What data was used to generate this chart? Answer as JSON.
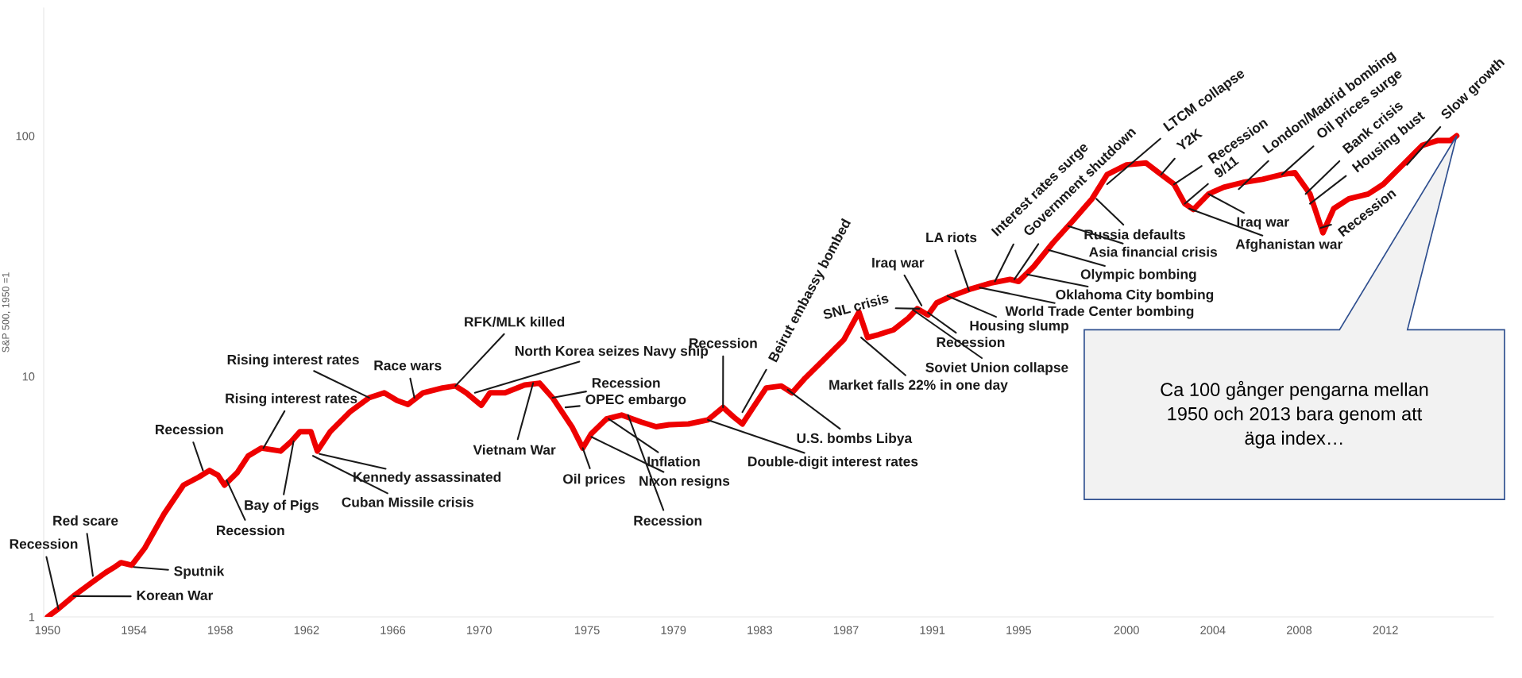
{
  "chart_data": {
    "type": "line",
    "ylabel": "S&P 500, 1950 =1",
    "log": "y",
    "grid": false,
    "legend": false,
    "marker": "none",
    "line_style": "solid",
    "xlim": [
      1949.82,
      2017.0
    ],
    "ylim": [
      1,
      340
    ],
    "yticks": [
      1,
      10,
      100
    ],
    "xticks": [
      1950,
      1954,
      1958,
      1962,
      1966,
      1970,
      1975,
      1979,
      1983,
      1987,
      1991,
      1995,
      2000,
      2004,
      2008,
      2012
    ],
    "series": [
      {
        "color": "#ee0000",
        "x": [
          1950.0,
          1950.5,
          1951.2,
          1952.1,
          1952.7,
          1953.1,
          1953.4,
          1953.9,
          1954.5,
          1955.4,
          1956.3,
          1957.0,
          1957.5,
          1957.9,
          1958.2,
          1958.8,
          1959.3,
          1959.9,
          1960.8,
          1961.3,
          1961.7,
          1962.2,
          1962.5,
          1963.1,
          1964.0,
          1964.9,
          1965.6,
          1966.2,
          1966.7,
          1967.4,
          1968.3,
          1968.9,
          1969.4,
          1970.1,
          1970.5,
          1971.2,
          1972.1,
          1972.8,
          1973.4,
          1974.3,
          1974.8,
          1975.2,
          1975.9,
          1976.6,
          1977.5,
          1978.2,
          1978.8,
          1979.7,
          1980.6,
          1981.3,
          1981.8,
          1982.2,
          1982.7,
          1983.3,
          1984.0,
          1984.5,
          1985.1,
          1986.0,
          1986.9,
          1987.6,
          1988.0,
          1988.5,
          1989.2,
          1989.9,
          1990.3,
          1990.8,
          1991.2,
          1991.9,
          1992.8,
          1993.7,
          1994.6,
          1995.0,
          1995.7,
          1996.6,
          1997.5,
          1998.4,
          1999.1,
          2000.0,
          2000.9,
          2001.6,
          2002.2,
          2002.7,
          2003.1,
          2003.8,
          2004.5,
          2005.4,
          2006.3,
          2007.2,
          2007.8,
          2008.5,
          2009.1,
          2009.6,
          2010.3,
          2011.2,
          2011.9,
          2012.8,
          2013.7,
          2014.4,
          2015.0,
          2015.3
        ],
        "values": [
          1.0,
          1.08,
          1.22,
          1.4,
          1.53,
          1.61,
          1.68,
          1.64,
          1.93,
          2.68,
          3.53,
          3.81,
          4.06,
          3.88,
          3.53,
          3.99,
          4.67,
          5.03,
          4.89,
          5.37,
          5.89,
          5.89,
          4.89,
          5.89,
          7.1,
          8.15,
          8.54,
          7.93,
          7.64,
          8.54,
          8.95,
          9.12,
          8.54,
          7.57,
          8.54,
          8.54,
          9.2,
          9.37,
          8.15,
          6.17,
          5.03,
          5.78,
          6.65,
          6.9,
          6.46,
          6.17,
          6.29,
          6.34,
          6.59,
          7.43,
          6.77,
          6.34,
          7.43,
          8.95,
          9.12,
          8.54,
          9.82,
          11.8,
          14.2,
          18.5,
          14.5,
          14.9,
          15.6,
          17.5,
          19.1,
          18.0,
          20.2,
          21.6,
          23.1,
          24.4,
          25.3,
          24.8,
          28.6,
          36.0,
          44.2,
          54.7,
          69.0,
          75.7,
          77.1,
          69.0,
          62.9,
          52.2,
          49.4,
          57.3,
          61.1,
          64.0,
          65.9,
          69.0,
          70.3,
          57.3,
          39.5,
          49.8,
          54.7,
          57.3,
          62.9,
          75.7,
          91.2,
          95.5,
          95.5,
          100
        ]
      }
    ],
    "annotations": [
      {
        "text": "Recession",
        "x": 1950.5,
        "y": 1.08
      },
      {
        "text": "Red scare",
        "x": 1952.1,
        "y": 1.48
      },
      {
        "text": "Korean War",
        "x": 1951.2,
        "y": 1.22
      },
      {
        "text": "Sputnik",
        "x": 1954.0,
        "y": 1.61
      },
      {
        "text": "Recession",
        "x": 1957.2,
        "y": 4.06
      },
      {
        "text": "Recession",
        "x": 1958.3,
        "y": 3.7
      },
      {
        "text": "Rising interest rates",
        "x": 1960.0,
        "y": 5.03
      },
      {
        "text": "Rising interest rates",
        "x": 1964.9,
        "y": 8.15
      },
      {
        "text": "Bay of Pigs",
        "x": 1961.4,
        "y": 5.37
      },
      {
        "text": "Cuban Missile crisis",
        "x": 1962.3,
        "y": 4.67
      },
      {
        "text": "Kennedy assassinated",
        "x": 1962.6,
        "y": 4.76
      },
      {
        "text": "Race wars",
        "x": 1967.0,
        "y": 8.15
      },
      {
        "text": "RFK/MLK killed",
        "x": 1968.9,
        "y": 9.12
      },
      {
        "text": "North Korea seizes Navy ship",
        "x": 1969.8,
        "y": 8.54
      },
      {
        "text": "Vietnam War",
        "x": 1972.5,
        "y": 9.37
      },
      {
        "text": "Recession",
        "x": 1973.4,
        "y": 8.15
      },
      {
        "text": "OPEC embargo",
        "x": 1974.0,
        "y": 7.43
      },
      {
        "text": "Oil prices",
        "x": 1974.8,
        "y": 5.03
      },
      {
        "text": "Inflation",
        "x": 1976.0,
        "y": 6.65
      },
      {
        "text": "Nixon resigns",
        "x": 1975.2,
        "y": 5.6
      },
      {
        "text": "Recession",
        "x": 1976.9,
        "y": 6.9
      },
      {
        "text": "Double-digit interest rates",
        "x": 1980.6,
        "y": 6.59
      },
      {
        "text": "Recession",
        "x": 1981.3,
        "y": 7.43
      },
      {
        "text": "Beirut embassy bombed",
        "x": 1982.2,
        "y": 7.1
      },
      {
        "text": "U.S. bombs Libya",
        "x": 1984.3,
        "y": 8.8
      },
      {
        "text": "SNL crisis",
        "x": 1990.4,
        "y": 19.1
      },
      {
        "text": "Market falls 22% in one day",
        "x": 1987.7,
        "y": 14.5
      },
      {
        "text": "Soviet Union collapse",
        "x": 1990.1,
        "y": 18.9
      },
      {
        "text": "Iraq war",
        "x": 1990.5,
        "y": 19.7
      },
      {
        "text": "Recession",
        "x": 1990.8,
        "y": 18.4
      },
      {
        "text": "LA riots",
        "x": 1992.7,
        "y": 22.7
      },
      {
        "text": "Housing slump",
        "x": 1991.7,
        "y": 21.6
      },
      {
        "text": "World Trade Center bombing",
        "x": 1993.2,
        "y": 23.4
      },
      {
        "text": "Interest rates surge",
        "x": 1993.9,
        "y": 24.8
      },
      {
        "text": "Government shutdown",
        "x": 1994.8,
        "y": 25.3
      },
      {
        "text": "Oklahoma City bombing",
        "x": 1995.4,
        "y": 26.5
      },
      {
        "text": "Olympic bombing",
        "x": 1996.4,
        "y": 33.5
      },
      {
        "text": "Asia financial crisis",
        "x": 1997.3,
        "y": 42.1
      },
      {
        "text": "Russia defaults",
        "x": 1998.6,
        "y": 54.7
      },
      {
        "text": "LTCM collapse",
        "x": 1999.1,
        "y": 62.9
      },
      {
        "text": "Y2K",
        "x": 2001.6,
        "y": 69.0
      },
      {
        "text": "Recession",
        "x": 2002.2,
        "y": 62.9
      },
      {
        "text": "9/11",
        "x": 2002.7,
        "y": 52.2
      },
      {
        "text": "Iraq war",
        "x": 2003.8,
        "y": 57.3
      },
      {
        "text": "Afghanistan war",
        "x": 2002.9,
        "y": 49.8
      },
      {
        "text": "London/Madrid bombing",
        "x": 2005.2,
        "y": 60.0
      },
      {
        "text": "Oil prices surge",
        "x": 2007.2,
        "y": 69.0
      },
      {
        "text": "Bank crisis",
        "x": 2008.3,
        "y": 57.3
      },
      {
        "text": "Housing bust",
        "x": 2008.5,
        "y": 52.2
      },
      {
        "text": "Recession",
        "x": 2009.0,
        "y": 41.4
      },
      {
        "text": "Slow growth",
        "x": 2013.0,
        "y": 75.7
      },
      "Ca 100 gånger pengarna mellan\n1950 och 2013 bara genom att\näga index…"
    ]
  }
}
